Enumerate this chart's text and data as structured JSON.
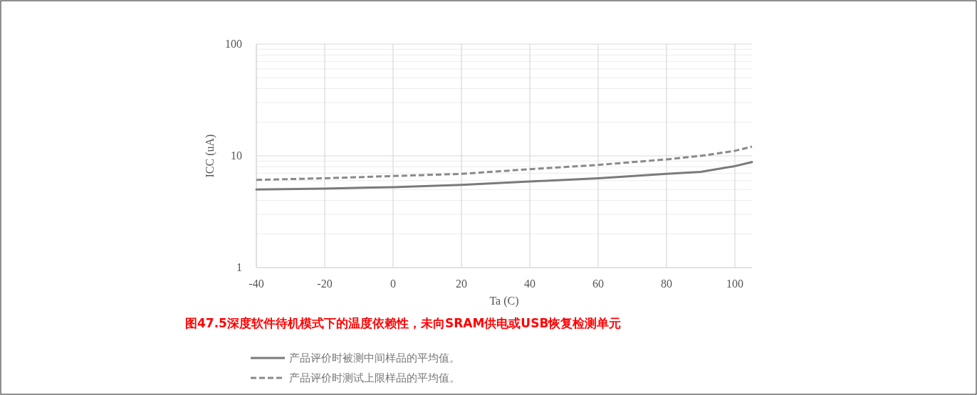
{
  "chart_data": {
    "type": "line",
    "title": "图47.5深度软件待机模式下的温度依赖性，未向SRAM供电或USB恢复检测单元",
    "xlabel": "Ta (C)",
    "ylabel": "ICC (uA)",
    "log": "y",
    "grid": true,
    "legend": "bottom",
    "x": [
      -40,
      -20,
      0,
      20,
      40,
      60,
      80,
      90,
      100,
      105
    ],
    "xlim": [
      -40,
      105
    ],
    "xticks": [
      -40,
      -20,
      0,
      20,
      40,
      60,
      80,
      100
    ],
    "ylim": [
      1,
      100
    ],
    "yticks": [
      1,
      10,
      100
    ],
    "series": [
      {
        "name": "产品评价时被测中间样品的平均值。",
        "color": "#7a7a7a",
        "line_style": "solid",
        "values": [
          5.0,
          5.1,
          5.25,
          5.5,
          5.9,
          6.3,
          6.9,
          7.2,
          8.1,
          8.8
        ]
      },
      {
        "name": "产品评价时测试上限样品的平均值。",
        "color": "#8a8a8a",
        "line_style": "dashed",
        "values": [
          6.1,
          6.3,
          6.6,
          6.9,
          7.6,
          8.3,
          9.3,
          10.0,
          11.1,
          12.1
        ]
      }
    ]
  }
}
